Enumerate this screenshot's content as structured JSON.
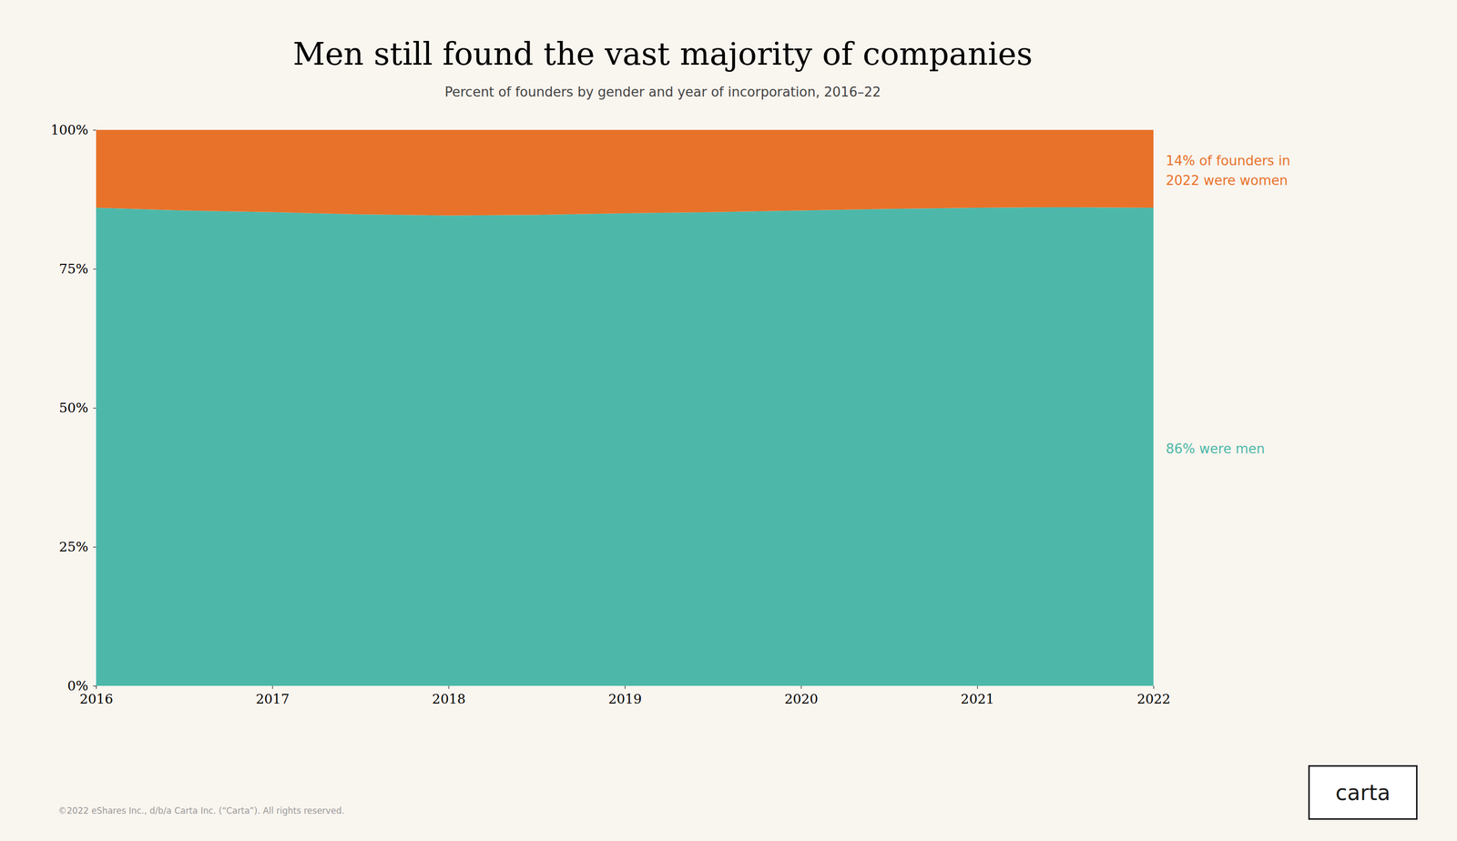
{
  "chart_data": {
    "type": "area",
    "stacked": true,
    "title": "Men still found the vast majority of companies",
    "subtitle": "Percent of founders by gender and year of incorporation, 2016–22",
    "x": [
      2016,
      2016.5,
      2017,
      2017.5,
      2018,
      2018.5,
      2019,
      2019.5,
      2020,
      2020.5,
      2021,
      2021.5,
      2022
    ],
    "series": [
      {
        "color": "#4db8aa",
        "annotation": "86% were men",
        "values": [
          86,
          85.5,
          85.2,
          84.8,
          84.6,
          84.7,
          85.0,
          85.2,
          85.5,
          85.8,
          86.0,
          86.1,
          86
        ]
      },
      {
        "color": "#e8722a",
        "annotation": "14% of founders in\n2022 were women",
        "values": [
          14,
          14.5,
          14.8,
          15.2,
          15.4,
          15.3,
          15.0,
          14.8,
          14.5,
          14.2,
          14.0,
          13.9,
          14
        ]
      }
    ],
    "xlim": [
      2016,
      2022
    ],
    "xticks": [
      2016,
      2017,
      2018,
      2019,
      2020,
      2021,
      2022
    ],
    "ylim": [
      0,
      100
    ],
    "yticks": [
      {
        "value": 0,
        "label": "0%"
      },
      {
        "value": 25,
        "label": "25%"
      },
      {
        "value": 50,
        "label": "50%"
      },
      {
        "value": 75,
        "label": "75%"
      },
      {
        "value": 100,
        "label": "100%"
      }
    ],
    "grid": false,
    "footer": "©2022 eShares Inc., d/b/a Carta Inc. (“Carta”). All rights reserved.",
    "logo_text": "carta",
    "background": "#f9f5ef"
  }
}
